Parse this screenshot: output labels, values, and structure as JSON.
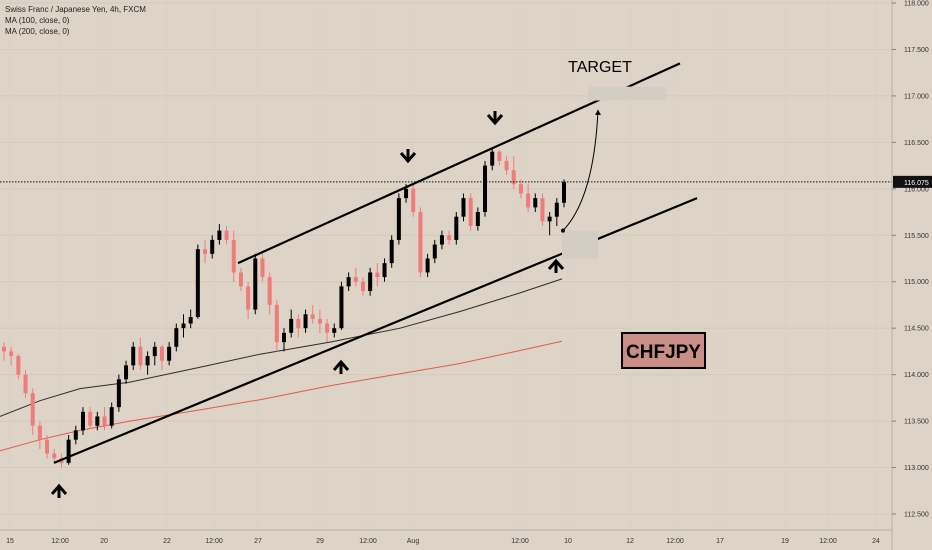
{
  "header": {
    "title": "Swiss Franc / Japanese Yen, 4h, FXCM",
    "indicators": [
      "MA (100, close, 0)",
      "MA (200, close, 0)"
    ]
  },
  "annotations": {
    "target_label": "TARGET",
    "symbol_label": "CHFJPY"
  },
  "colors": {
    "background": "#ddd3c6",
    "bull": "#000000",
    "bear": "#f07b7b",
    "ma100": "#2b2b2b",
    "ma200": "#e05a4f",
    "badge_fill": "#c98f87"
  },
  "chart_data": {
    "type": "candlestick",
    "y_axis": {
      "ticks": [
        "118.000",
        "117.500",
        "117.000",
        "116.500",
        "116.000",
        "115.500",
        "115.000",
        "114.500",
        "114.000",
        "113.500",
        "113.000",
        "112.500"
      ],
      "ylim": [
        112.4,
        118.02
      ]
    },
    "x_axis": {
      "ticks": [
        "15",
        "12:00",
        "20",
        "22",
        "12:00",
        "27",
        "29",
        "12:00",
        "Aug",
        "12:00",
        "10",
        "12",
        "12:00",
        "17",
        "19",
        "12:00",
        "24"
      ]
    },
    "current_price": "116.075",
    "ohlc": [
      [
        114.3,
        114.35,
        114.15,
        114.25
      ],
      [
        114.25,
        114.3,
        114.1,
        114.2
      ],
      [
        114.2,
        114.22,
        113.95,
        114.0
      ],
      [
        114.0,
        114.05,
        113.75,
        113.8
      ],
      [
        113.8,
        113.85,
        113.35,
        113.45
      ],
      [
        113.45,
        113.5,
        113.2,
        113.3
      ],
      [
        113.3,
        113.35,
        113.1,
        113.15
      ],
      [
        113.15,
        113.2,
        113.05,
        113.1
      ],
      [
        113.1,
        113.15,
        113.0,
        113.05
      ],
      [
        113.05,
        113.35,
        113.03,
        113.3
      ],
      [
        113.3,
        113.45,
        113.25,
        113.4
      ],
      [
        113.4,
        113.65,
        113.35,
        113.6
      ],
      [
        113.6,
        113.65,
        113.42,
        113.45
      ],
      [
        113.45,
        113.6,
        113.4,
        113.55
      ],
      [
        113.55,
        113.65,
        113.4,
        113.45
      ],
      [
        113.45,
        113.7,
        113.42,
        113.65
      ],
      [
        113.65,
        114.0,
        113.6,
        113.95
      ],
      [
        113.95,
        114.15,
        113.9,
        114.1
      ],
      [
        114.1,
        114.35,
        114.05,
        114.3
      ],
      [
        114.3,
        114.4,
        114.05,
        114.1
      ],
      [
        114.1,
        114.25,
        114.0,
        114.2
      ],
      [
        114.2,
        114.35,
        114.1,
        114.3
      ],
      [
        114.3,
        114.32,
        114.05,
        114.15
      ],
      [
        114.15,
        114.35,
        114.1,
        114.3
      ],
      [
        114.3,
        114.55,
        114.25,
        114.5
      ],
      [
        114.5,
        114.65,
        114.4,
        114.55
      ],
      [
        114.55,
        114.7,
        114.5,
        114.62
      ],
      [
        114.62,
        115.4,
        114.6,
        115.35
      ],
      [
        115.35,
        115.45,
        115.2,
        115.3
      ],
      [
        115.3,
        115.5,
        115.25,
        115.45
      ],
      [
        115.45,
        115.62,
        115.4,
        115.55
      ],
      [
        115.55,
        115.6,
        115.4,
        115.45
      ],
      [
        115.45,
        115.55,
        115.0,
        115.1
      ],
      [
        115.1,
        115.15,
        114.9,
        114.95
      ],
      [
        114.95,
        115.0,
        114.6,
        114.7
      ],
      [
        114.7,
        115.3,
        114.65,
        115.25
      ],
      [
        115.25,
        115.3,
        115.0,
        115.05
      ],
      [
        115.05,
        115.1,
        114.65,
        114.75
      ],
      [
        114.75,
        114.8,
        114.25,
        114.35
      ],
      [
        114.35,
        114.5,
        114.25,
        114.45
      ],
      [
        114.45,
        114.7,
        114.4,
        114.6
      ],
      [
        114.6,
        114.65,
        114.4,
        114.5
      ],
      [
        114.5,
        114.7,
        114.45,
        114.65
      ],
      [
        114.65,
        114.75,
        114.55,
        114.6
      ],
      [
        114.6,
        114.7,
        114.45,
        114.55
      ],
      [
        114.55,
        114.6,
        114.35,
        114.45
      ],
      [
        114.45,
        114.55,
        114.4,
        114.5
      ],
      [
        114.5,
        115.0,
        114.48,
        114.95
      ],
      [
        114.95,
        115.1,
        114.9,
        115.05
      ],
      [
        115.05,
        115.15,
        114.95,
        115.0
      ],
      [
        115.0,
        115.05,
        114.85,
        114.9
      ],
      [
        114.9,
        115.15,
        114.85,
        115.1
      ],
      [
        115.1,
        115.2,
        114.95,
        115.05
      ],
      [
        115.05,
        115.25,
        115.0,
        115.2
      ],
      [
        115.2,
        115.5,
        115.15,
        115.45
      ],
      [
        115.45,
        115.95,
        115.4,
        115.9
      ],
      [
        115.9,
        116.05,
        115.85,
        116.0
      ],
      [
        116.0,
        116.05,
        115.7,
        115.75
      ],
      [
        115.75,
        115.8,
        115.05,
        115.1
      ],
      [
        115.1,
        115.3,
        115.05,
        115.25
      ],
      [
        115.25,
        115.45,
        115.2,
        115.4
      ],
      [
        115.4,
        115.55,
        115.35,
        115.5
      ],
      [
        115.5,
        115.55,
        115.4,
        115.45
      ],
      [
        115.45,
        115.75,
        115.4,
        115.7
      ],
      [
        115.7,
        115.95,
        115.65,
        115.9
      ],
      [
        115.9,
        115.95,
        115.55,
        115.6
      ],
      [
        115.6,
        115.8,
        115.55,
        115.75
      ],
      [
        115.75,
        116.3,
        115.7,
        116.25
      ],
      [
        116.25,
        116.45,
        116.2,
        116.4
      ],
      [
        116.4,
        116.42,
        116.25,
        116.3
      ],
      [
        116.3,
        116.35,
        116.15,
        116.2
      ],
      [
        116.2,
        116.35,
        116.0,
        116.05
      ],
      [
        116.05,
        116.1,
        115.9,
        115.95
      ],
      [
        115.95,
        116.05,
        115.75,
        115.8
      ],
      [
        115.8,
        115.95,
        115.75,
        115.9
      ],
      [
        115.9,
        115.95,
        115.6,
        115.65
      ],
      [
        115.65,
        115.75,
        115.5,
        115.7
      ],
      [
        115.7,
        115.9,
        115.6,
        115.85
      ],
      [
        115.85,
        116.1,
        115.8,
        116.075
      ]
    ],
    "ma_100": [
      [
        0,
        113.55
      ],
      [
        40,
        113.72
      ],
      [
        80,
        113.85
      ],
      [
        130,
        113.92
      ],
      [
        200,
        114.08
      ],
      [
        260,
        114.22
      ],
      [
        330,
        114.35
      ],
      [
        400,
        114.5
      ],
      [
        460,
        114.68
      ],
      [
        520,
        114.88
      ],
      [
        562,
        115.03
      ]
    ],
    "ma_200": [
      [
        0,
        113.18
      ],
      [
        40,
        113.3
      ],
      [
        80,
        113.4
      ],
      [
        130,
        113.5
      ],
      [
        200,
        113.62
      ],
      [
        260,
        113.73
      ],
      [
        330,
        113.88
      ],
      [
        400,
        114.01
      ],
      [
        460,
        114.12
      ],
      [
        520,
        114.26
      ],
      [
        562,
        114.36
      ]
    ],
    "channel_upper": [
      [
        238,
        115.2
      ],
      [
        680,
        117.35
      ]
    ],
    "channel_lower": [
      [
        54,
        113.05
      ],
      [
        697,
        115.9
      ]
    ],
    "projection": [
      [
        563,
        115.55
      ],
      [
        598,
        116.85
      ]
    ]
  }
}
